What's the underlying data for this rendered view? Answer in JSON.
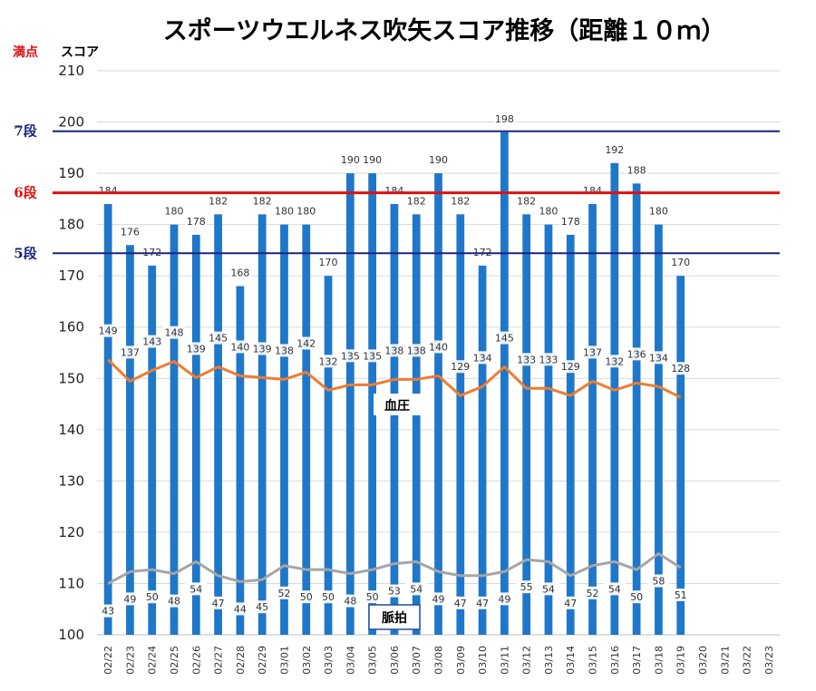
{
  "chart_data": {
    "type": "bar",
    "title": "スポーツウエルネス吹矢スコア推移（距離１０ｍ）",
    "ylabel": "スコア",
    "full_score_label": "満点",
    "ylim": [
      100,
      210
    ],
    "yticks": [
      100,
      110,
      120,
      130,
      140,
      150,
      160,
      170,
      180,
      190,
      200,
      210
    ],
    "grid": true,
    "categories": [
      "02/22",
      "02/23",
      "02/24",
      "02/25",
      "02/26",
      "02/27",
      "02/28",
      "02/29",
      "03/01",
      "03/02",
      "03/03",
      "03/04",
      "03/05",
      "03/06",
      "03/07",
      "03/08",
      "03/09",
      "03/10",
      "03/11",
      "03/12",
      "03/13",
      "03/14",
      "03/15",
      "03/16",
      "03/17",
      "03/18",
      "03/19",
      "03/20",
      "03/21",
      "03/22",
      "03/23"
    ],
    "series": [
      {
        "values": [
          184,
          176,
          172,
          180,
          178,
          182,
          168,
          182,
          180,
          180,
          170,
          190,
          190,
          184,
          182,
          190,
          182,
          172,
          198,
          182,
          180,
          178,
          184,
          192,
          188,
          180,
          170,
          null,
          null,
          null,
          null
        ]
      },
      {
        "name": "血圧",
        "values": [
          149,
          137,
          143,
          148,
          139,
          145,
          140,
          139,
          138,
          142,
          132,
          135,
          135,
          138,
          138,
          140,
          129,
          134,
          145,
          133,
          133,
          129,
          137,
          132,
          136,
          134,
          128,
          null,
          null,
          null,
          null
        ]
      },
      {
        "name": "脈拍",
        "values": [
          43,
          49,
          50,
          48,
          54,
          47,
          44,
          45,
          52,
          50,
          50,
          48,
          50,
          53,
          54,
          49,
          47,
          47,
          49,
          55,
          54,
          47,
          52,
          54,
          50,
          58,
          51,
          null,
          null,
          null,
          null
        ]
      }
    ],
    "reference_lines": [
      {
        "label": "7段",
        "value": 198.2,
        "color": "#1a237e"
      },
      {
        "label": "6段",
        "value": 186.2,
        "color": "#e01010"
      },
      {
        "label": "5段",
        "value": 174.4,
        "color": "#1a237e"
      }
    ],
    "annotations": [
      "血圧",
      "脈拍"
    ],
    "colors": {
      "bar": "#1f77c9",
      "blood_pressure": "#ed7d31",
      "pulse": "#a5a5a5",
      "full_score": "#e01010"
    }
  }
}
